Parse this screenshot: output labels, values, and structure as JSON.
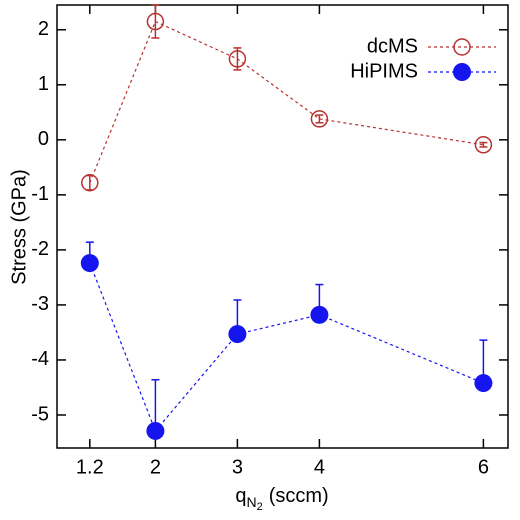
{
  "chart_data": {
    "type": "line",
    "xlabel": {
      "base": "q",
      "sub": "N",
      "subsub": "2",
      "unit": "(sccm)"
    },
    "ylabel": "Stress (GPa)",
    "x": [
      1.2,
      2,
      3,
      4,
      6
    ],
    "series": [
      {
        "name": "dcMS",
        "color": "#b8312f",
        "marker": "open",
        "error_direction": "both",
        "values": [
          -0.78,
          2.15,
          1.47,
          0.38,
          -0.09
        ],
        "errors": [
          0.13,
          0.3,
          0.2,
          0.07,
          0.04
        ]
      },
      {
        "name": "HiPIMS",
        "color": "#1515f0",
        "marker": "filled",
        "error_direction": "up",
        "values": [
          -2.24,
          -5.29,
          -3.53,
          -3.18,
          -4.42
        ],
        "errors": [
          0.38,
          0.93,
          0.62,
          0.55,
          0.78
        ]
      }
    ],
    "xlim": [
      0.8,
      6.3
    ],
    "xticks": [
      1.2,
      2,
      3,
      4,
      6
    ],
    "ylim": [
      -5.6,
      2.45
    ],
    "yticks": [
      -5,
      -4,
      -3,
      -2,
      -1,
      0,
      1,
      2
    ],
    "legend": "top-right"
  }
}
